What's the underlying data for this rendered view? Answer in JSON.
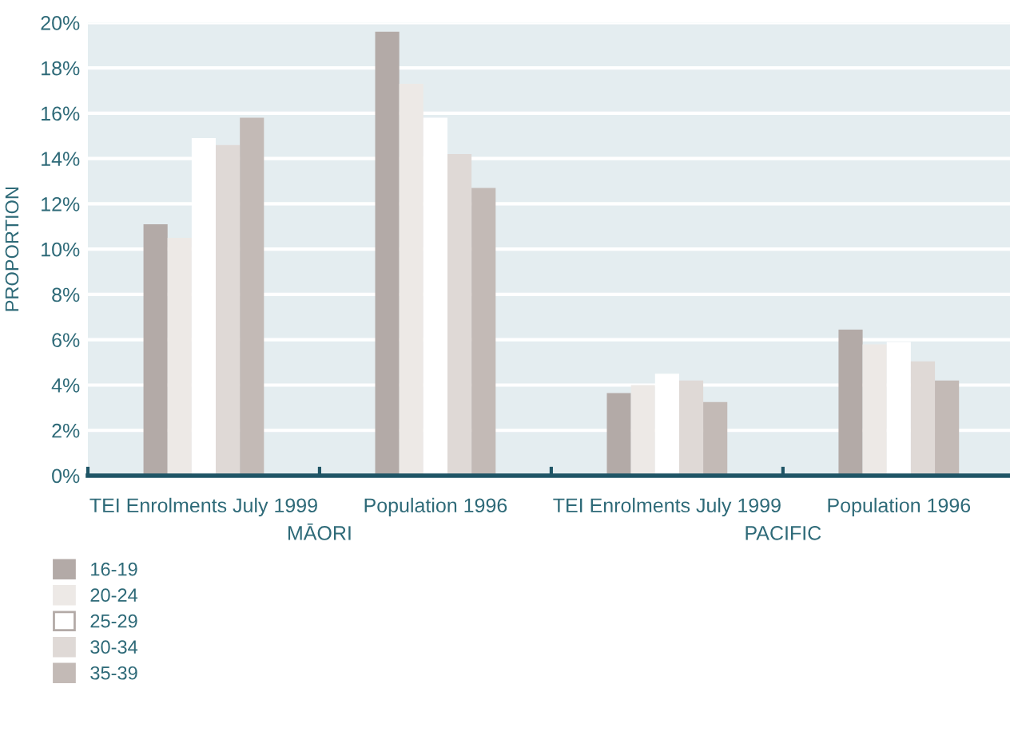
{
  "chart_data": {
    "type": "bar",
    "ylabel": "PROPORTION",
    "categories": [
      "TEI Enrolments July 1999",
      "Population 1996",
      "TEI Enrolments July 1999",
      "Population 1996"
    ],
    "series": [
      {
        "name": "16-19",
        "color": "#b3aaa7",
        "values": [
          11.1,
          19.6,
          3.65,
          6.45
        ]
      },
      {
        "name": "20-24",
        "color": "#ede9e6",
        "values": [
          10.5,
          17.3,
          4.0,
          5.8
        ]
      },
      {
        "name": "25-29",
        "color": "#ffffff",
        "values": [
          14.9,
          15.8,
          4.5,
          5.9
        ]
      },
      {
        "name": "30-34",
        "color": "#dfd9d6",
        "values": [
          14.6,
          14.2,
          4.2,
          5.05
        ]
      },
      {
        "name": "35-39",
        "color": "#c3bab6",
        "values": [
          15.8,
          12.7,
          3.25,
          4.2
        ]
      }
    ],
    "ylim": [
      0,
      20
    ],
    "yticks": [
      {
        "value": 0,
        "label": "0%"
      },
      {
        "value": 2,
        "label": "2%"
      },
      {
        "value": 4,
        "label": "4%"
      },
      {
        "value": 6,
        "label": "6%"
      },
      {
        "value": 8,
        "label": "8%"
      },
      {
        "value": 10,
        "label": "10%"
      },
      {
        "value": 12,
        "label": "12%"
      },
      {
        "value": 14,
        "label": "14%"
      },
      {
        "value": 16,
        "label": "16%"
      },
      {
        "value": 18,
        "label": "18%"
      },
      {
        "value": 20,
        "label": "20%"
      }
    ],
    "annotations": [
      "MĀORI",
      "PACIFIC"
    ],
    "grid": "y",
    "legend": "bottom left"
  }
}
